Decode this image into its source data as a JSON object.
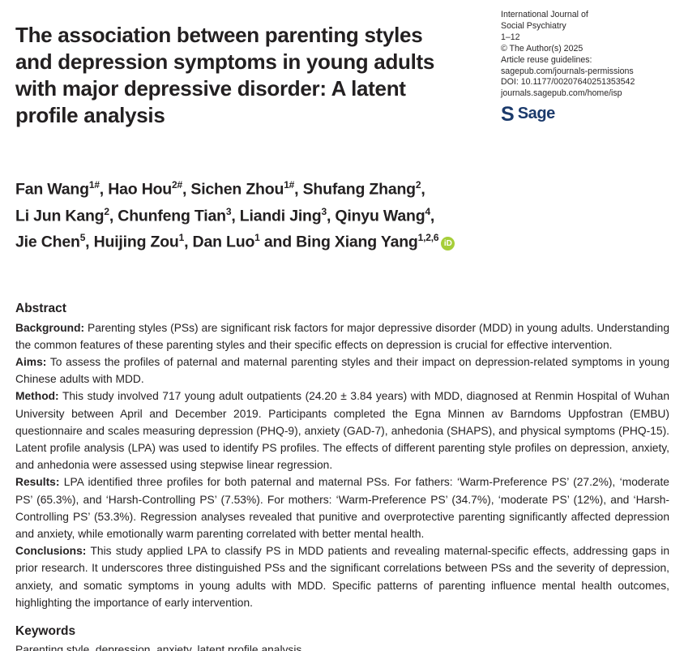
{
  "title": "The association between parenting styles and depression symptoms in young adults with major depressive disorder: A latent profile analysis",
  "journal": {
    "lines": [
      "International Journal of",
      "Social Psychiatry",
      "1–12",
      "© The Author(s) 2025",
      "Article reuse guidelines:",
      "sagepub.com/journals-permissions",
      "DOI: 10.1177/00207640251353542",
      "journals.sagepub.com/home/isp"
    ],
    "logo": {
      "s": "S",
      "word": "Sage",
      "color": "#1b3a6b"
    }
  },
  "authors": {
    "lines": [
      {
        "segments": [
          {
            "t": "Fan Wang"
          },
          {
            "s": "1#"
          },
          {
            "t": ", Hao Hou"
          },
          {
            "s": "2#"
          },
          {
            "t": ", Sichen Zhou"
          },
          {
            "s": "1#"
          },
          {
            "t": ", Shufang Zhang"
          },
          {
            "s": "2"
          },
          {
            "t": ","
          }
        ]
      },
      {
        "segments": [
          {
            "t": "Li Jun Kang"
          },
          {
            "s": "2"
          },
          {
            "t": ", Chunfeng Tian"
          },
          {
            "s": "3"
          },
          {
            "t": ", Liandi Jing"
          },
          {
            "s": "3"
          },
          {
            "t": ", Qinyu Wang"
          },
          {
            "s": "4"
          },
          {
            "t": ","
          }
        ]
      },
      {
        "segments": [
          {
            "t": "Jie Chen"
          },
          {
            "s": "5"
          },
          {
            "t": ", Huijing Zou"
          },
          {
            "s": "1"
          },
          {
            "t": ", Dan Luo"
          },
          {
            "s": "1"
          },
          {
            "t": " and Bing Xiang Yang"
          },
          {
            "s": "1,2,6"
          }
        ],
        "orcid": true
      }
    ],
    "orcid_label": "iD",
    "orcid_color": "#a6ce39"
  },
  "abstract": {
    "heading": "Abstract",
    "paragraphs": [
      {
        "label": "Background:",
        "text": "Parenting styles (PSs) are significant risk factors for major depressive disorder (MDD) in young adults. Understanding the common features of these parenting styles and their specific effects on depression is crucial for effective intervention."
      },
      {
        "label": "Aims:",
        "text": "To assess the profiles of paternal and maternal parenting styles and their impact on depression-related symptoms in young Chinese adults with MDD."
      },
      {
        "label": "Method:",
        "text": "This study involved 717 young adult outpatients (24.20 ± 3.84 years) with MDD, diagnosed at Renmin Hospital of Wuhan University between April and December 2019. Participants completed the Egna Minnen av Barndoms Uppfostran (EMBU) questionnaire and scales measuring depression (PHQ-9), anxiety (GAD-7), anhedonia (SHAPS), and physical symptoms (PHQ-15). Latent profile analysis (LPA) was used to identify PS profiles. The effects of different parenting style profiles on depression, anxiety, and anhedonia were assessed using stepwise linear regression."
      },
      {
        "label": "Results:",
        "text": "LPA identified three profiles for both paternal and maternal PSs. For fathers: ‘Warm-Preference PS’ (27.2%), ‘moderate PS’ (65.3%), and ‘Harsh-Controlling PS’ (7.53%). For mothers: ‘Warm-Preference PS’ (34.7%), ‘moderate PS’ (12%), and ‘Harsh-Controlling PS’ (53.3%). Regression analyses revealed that punitive and overprotective parenting significantly affected depression and anxiety, while emotionally warm parenting correlated with better mental health."
      },
      {
        "label": "Conclusions:",
        "text": "This study applied LPA to classify PS in MDD patients and revealing maternal-specific effects, addressing gaps in prior research. It underscores three distinguished PSs and the significant correlations between PSs and the severity of depression, anxiety, and somatic symptoms in young adults with MDD. Specific patterns of parenting influence mental health outcomes, highlighting the importance of early intervention."
      }
    ]
  },
  "keywords": {
    "heading": "Keywords",
    "text": "Parenting style, depression, anxiety, latent profile analysis"
  }
}
